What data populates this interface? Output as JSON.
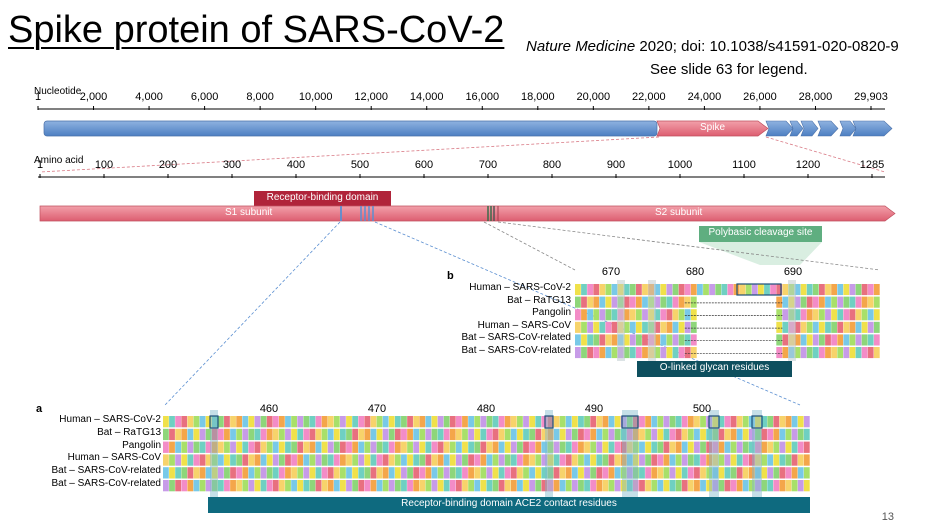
{
  "title": "Spike protein of SARS-CoV-2",
  "citation": {
    "journal": "Nature Medicine",
    "rest": " 2020; doi: 10.1038/s41591-020-0820-9"
  },
  "legend_note": "See slide 63 for legend.",
  "slide_number": "13",
  "nucleotide": {
    "label": "Nucleotide",
    "ticks": [
      "1",
      "2,000",
      "4,000",
      "6,000",
      "8,000",
      "10,000",
      "12,000",
      "14,000",
      "16,000",
      "18,000",
      "20,000",
      "22,000",
      "24,000",
      "26,000",
      "28,000",
      "29,903"
    ],
    "spike_label": "Spike"
  },
  "amino": {
    "label": "Amino acid",
    "ticks": [
      "1",
      "100",
      "200",
      "300",
      "400",
      "500",
      "600",
      "700",
      "800",
      "900",
      "1000",
      "1100",
      "1200",
      "1285"
    ],
    "rbd_label": "Receptor-binding domain",
    "s1_label": "S1 subunit",
    "s2_label": "S2 subunit",
    "cleavage_label": "Polybasic cleavage site"
  },
  "panel_b": {
    "letter": "b",
    "positions": [
      "670",
      "680",
      "690"
    ],
    "rows": [
      "Human – SARS-CoV-2",
      "Bat – RaTG13",
      "Pangolin",
      "Human – SARS-CoV",
      "Bat – SARS-CoV-related",
      "Bat – SARS-CoV-related"
    ],
    "footer": "O-linked glycan residues"
  },
  "panel_a": {
    "letter": "a",
    "positions": [
      "460",
      "470",
      "480",
      "490",
      "500"
    ],
    "rows": [
      "Human – SARS-CoV-2",
      "Bat – RaTG13",
      "Pangolin",
      "Human – SARS-CoV",
      "Bat – SARS-CoV-related",
      "Bat – SARS-CoV-related"
    ],
    "footer": "Receptor-binding domain ACE2 contact residues"
  },
  "colors": {
    "blue": "#5b8fd1",
    "pink": "#e8707f",
    "green": "#66b089",
    "teal": "#0e6a7f",
    "darkred": "#b0243a"
  }
}
